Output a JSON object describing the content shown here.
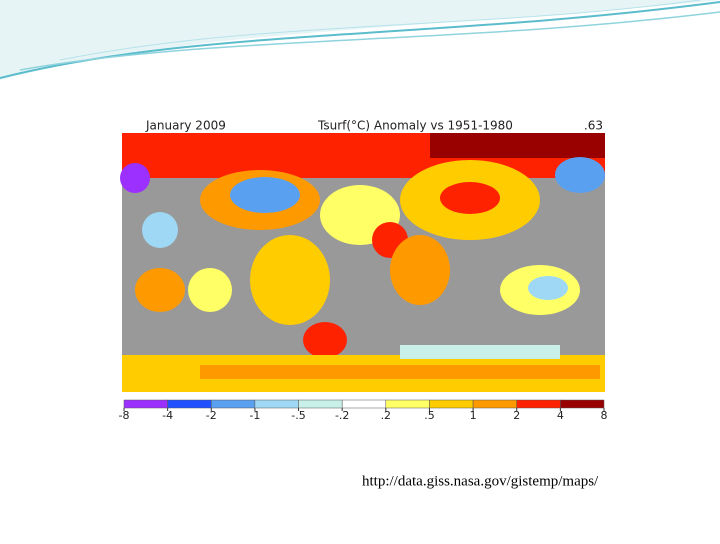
{
  "map": {
    "title_left": "January 2009",
    "title_center": "Tsurf(°C) Anomaly vs 1951-1980",
    "global_mean": ".63",
    "legend": {
      "ticks": [
        {
          "value": -8,
          "label": "-8"
        },
        {
          "value": -4,
          "label": "-4"
        },
        {
          "value": -2,
          "label": "-2"
        },
        {
          "value": -1,
          "label": "-1"
        },
        {
          "value": -0.5,
          "label": "-.5"
        },
        {
          "value": -0.2,
          "label": "-.2"
        },
        {
          "value": 0.2,
          "label": ".2"
        },
        {
          "value": 0.5,
          "label": ".5"
        },
        1,
        2,
        4,
        8
      ],
      "colors": [
        "#9b30ff",
        "#2050ff",
        "#5aa0f0",
        "#9fd8f5",
        "#c8f0e8",
        "#ffffff",
        "#ffff66",
        "#ffcc00",
        "#ff9900",
        "#ff2200",
        "#990000"
      ]
    }
  },
  "source": "http://data.giss.nasa.gov/gistemp/maps/"
}
